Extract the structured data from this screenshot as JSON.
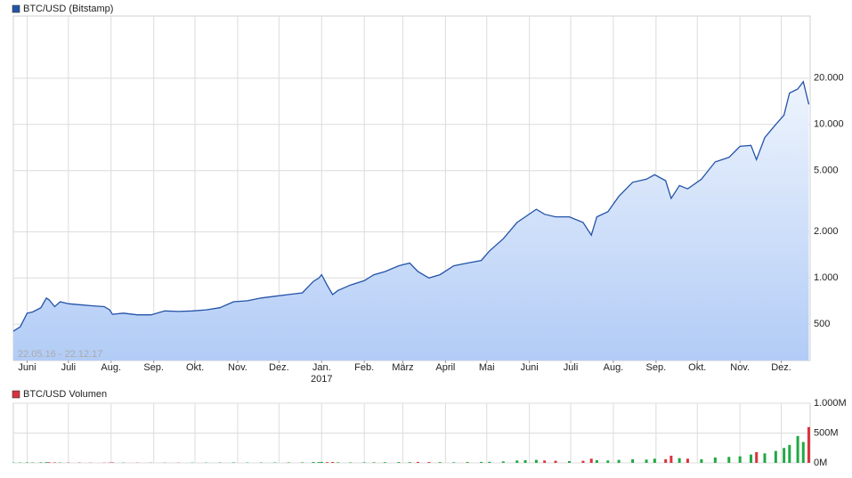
{
  "chart_data": [
    {
      "type": "area",
      "log_y": true,
      "grid": true,
      "annotation": "22.05.16 - 22.12.17",
      "xlim": [
        0,
        579
      ],
      "xticks": [
        {
          "value": 10,
          "label": "Juni"
        },
        {
          "value": 40,
          "label": "Juli"
        },
        {
          "value": 71,
          "label": "Aug."
        },
        {
          "value": 102,
          "label": "Sep."
        },
        {
          "value": 132,
          "label": "Okt."
        },
        {
          "value": 163,
          "label": "Nov."
        },
        {
          "value": 193,
          "label": "Dez."
        },
        {
          "value": 224,
          "label": "Jan."
        },
        {
          "value": 255,
          "label": "Feb."
        },
        {
          "value": 283,
          "label": "März"
        },
        {
          "value": 314,
          "label": "April"
        },
        {
          "value": 344,
          "label": "Mai"
        },
        {
          "value": 375,
          "label": "Juni"
        },
        {
          "value": 405,
          "label": "Juli"
        },
        {
          "value": 436,
          "label": "Aug."
        },
        {
          "value": 467,
          "label": "Sep."
        },
        {
          "value": 497,
          "label": "Okt."
        },
        {
          "value": 528,
          "label": "Nov."
        },
        {
          "value": 558,
          "label": "Dez."
        }
      ],
      "year_tick": {
        "value": 224,
        "label": "2017"
      },
      "ylim": [
        290,
        50800
      ],
      "yticks": [
        500,
        {
          "value": 1000,
          "label": "1.000"
        },
        {
          "value": 2000,
          "label": "2.000"
        },
        {
          "value": 5000,
          "label": "5.000"
        },
        {
          "value": 10000,
          "label": "10.000"
        },
        {
          "value": 20000,
          "label": "20.000"
        }
      ],
      "x": [
        0,
        5,
        10,
        14,
        20,
        24,
        26,
        30,
        34,
        40,
        48,
        56,
        66,
        70,
        72,
        80,
        90,
        100,
        110,
        120,
        130,
        140,
        150,
        160,
        170,
        180,
        190,
        200,
        210,
        218,
        222,
        224,
        228,
        232,
        236,
        245,
        255,
        262,
        270,
        280,
        288,
        294,
        302,
        310,
        320,
        330,
        340,
        346,
        356,
        366,
        372,
        380,
        386,
        394,
        404,
        414,
        420,
        424,
        432,
        440,
        450,
        460,
        466,
        474,
        478,
        484,
        490,
        500,
        510,
        520,
        528,
        536,
        540,
        546,
        554,
        560,
        564,
        570,
        574,
        578
      ],
      "series": [
        {
          "name": "BTC/USD (Bitstamp)",
          "color": "#2353a8",
          "values": [
            450,
            480,
            590,
            600,
            640,
            740,
            720,
            650,
            700,
            680,
            670,
            660,
            650,
            620,
            580,
            590,
            575,
            575,
            610,
            605,
            610,
            620,
            640,
            700,
            710,
            740,
            760,
            780,
            800,
            950,
            1000,
            1050,
            900,
            780,
            830,
            900,
            960,
            1050,
            1100,
            1200,
            1250,
            1100,
            1000,
            1050,
            1200,
            1250,
            1300,
            1500,
            1800,
            2300,
            2500,
            2800,
            2600,
            2500,
            2500,
            2300,
            1900,
            2500,
            2700,
            3400,
            4200,
            4400,
            4700,
            4300,
            3300,
            4000,
            3800,
            4400,
            5700,
            6100,
            7200,
            7300,
            5900,
            8200,
            10000,
            11500,
            16000,
            17000,
            19000,
            13500
          ]
        }
      ]
    },
    {
      "type": "bar",
      "grid": true,
      "xlim": [
        0,
        579
      ],
      "ylim": [
        0,
        1000
      ],
      "yticks": [
        {
          "value": 0,
          "label": "0M"
        },
        {
          "value": 500,
          "label": "500M"
        },
        {
          "value": 1000,
          "label": "1.000M"
        }
      ],
      "up_color": "#22a844",
      "down_color": "#d8333f",
      "x": [
        0,
        5,
        10,
        14,
        20,
        24,
        26,
        30,
        34,
        40,
        48,
        56,
        66,
        70,
        72,
        80,
        90,
        100,
        110,
        120,
        130,
        140,
        150,
        160,
        170,
        180,
        190,
        200,
        210,
        218,
        222,
        224,
        228,
        232,
        236,
        245,
        255,
        262,
        270,
        280,
        288,
        294,
        302,
        310,
        320,
        330,
        340,
        346,
        356,
        366,
        372,
        380,
        386,
        394,
        404,
        414,
        420,
        424,
        432,
        440,
        450,
        460,
        466,
        474,
        478,
        484,
        490,
        500,
        510,
        520,
        528,
        536,
        540,
        546,
        554,
        560,
        564,
        570,
        574,
        578
      ],
      "series": [
        {
          "name": "BTC/USD Volumen",
          "color": "#d8333f",
          "values": [
            5,
            6,
            8,
            7,
            9,
            12,
            10,
            8,
            6,
            5,
            5,
            4,
            4,
            6,
            8,
            5,
            4,
            4,
            4,
            4,
            5,
            5,
            6,
            8,
            6,
            6,
            7,
            8,
            9,
            15,
            14,
            16,
            12,
            15,
            10,
            8,
            9,
            10,
            12,
            14,
            12,
            16,
            14,
            12,
            10,
            14,
            16,
            18,
            25,
            40,
            45,
            50,
            40,
            35,
            30,
            35,
            70,
            45,
            40,
            50,
            60,
            55,
            70,
            60,
            120,
            80,
            70,
            60,
            90,
            100,
            110,
            140,
            180,
            160,
            200,
            250,
            300,
            450,
            350,
            600
          ]
        }
      ]
    }
  ]
}
